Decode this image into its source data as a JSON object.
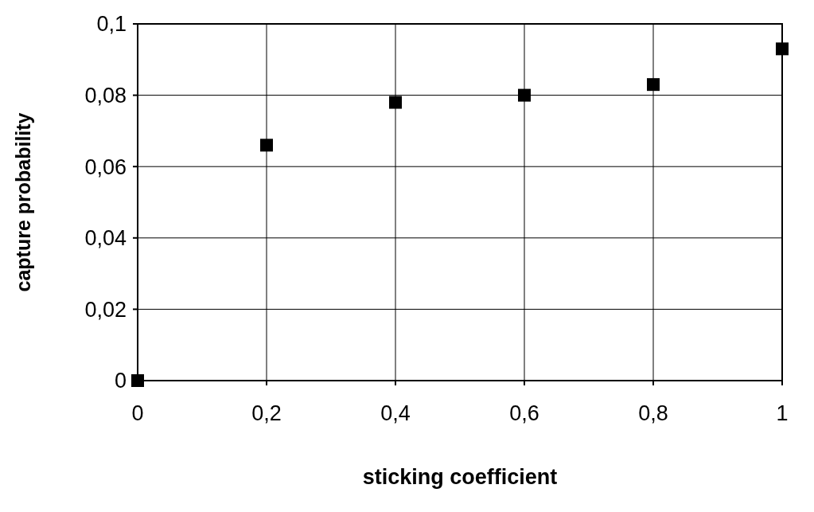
{
  "chart_data": {
    "type": "scatter",
    "xlabel": "sticking coefficient",
    "ylabel": "capture probability",
    "x": [
      0,
      0.2,
      0.4,
      0.6,
      0.8,
      1
    ],
    "series": [
      {
        "color": "#000000",
        "values": [
          0,
          0.066,
          0.078,
          0.08,
          0.083,
          0.093
        ]
      }
    ],
    "xlim": [
      0,
      1
    ],
    "ylim": [
      0,
      0.1
    ],
    "xticks": [
      0,
      {
        "value": 0.2,
        "label": "0,2"
      },
      {
        "value": 0.4,
        "label": "0,4"
      },
      {
        "value": 0.6,
        "label": "0,6"
      },
      {
        "value": 0.8,
        "label": "0,8"
      },
      1
    ],
    "yticks": [
      0,
      {
        "value": 0.02,
        "label": "0,02"
      },
      {
        "value": 0.04,
        "label": "0,04"
      },
      {
        "value": 0.06,
        "label": "0,06"
      },
      {
        "value": 0.08,
        "label": "0,08"
      },
      {
        "value": 0.1,
        "label": "0,1"
      }
    ],
    "grid": true,
    "marker": "square"
  }
}
